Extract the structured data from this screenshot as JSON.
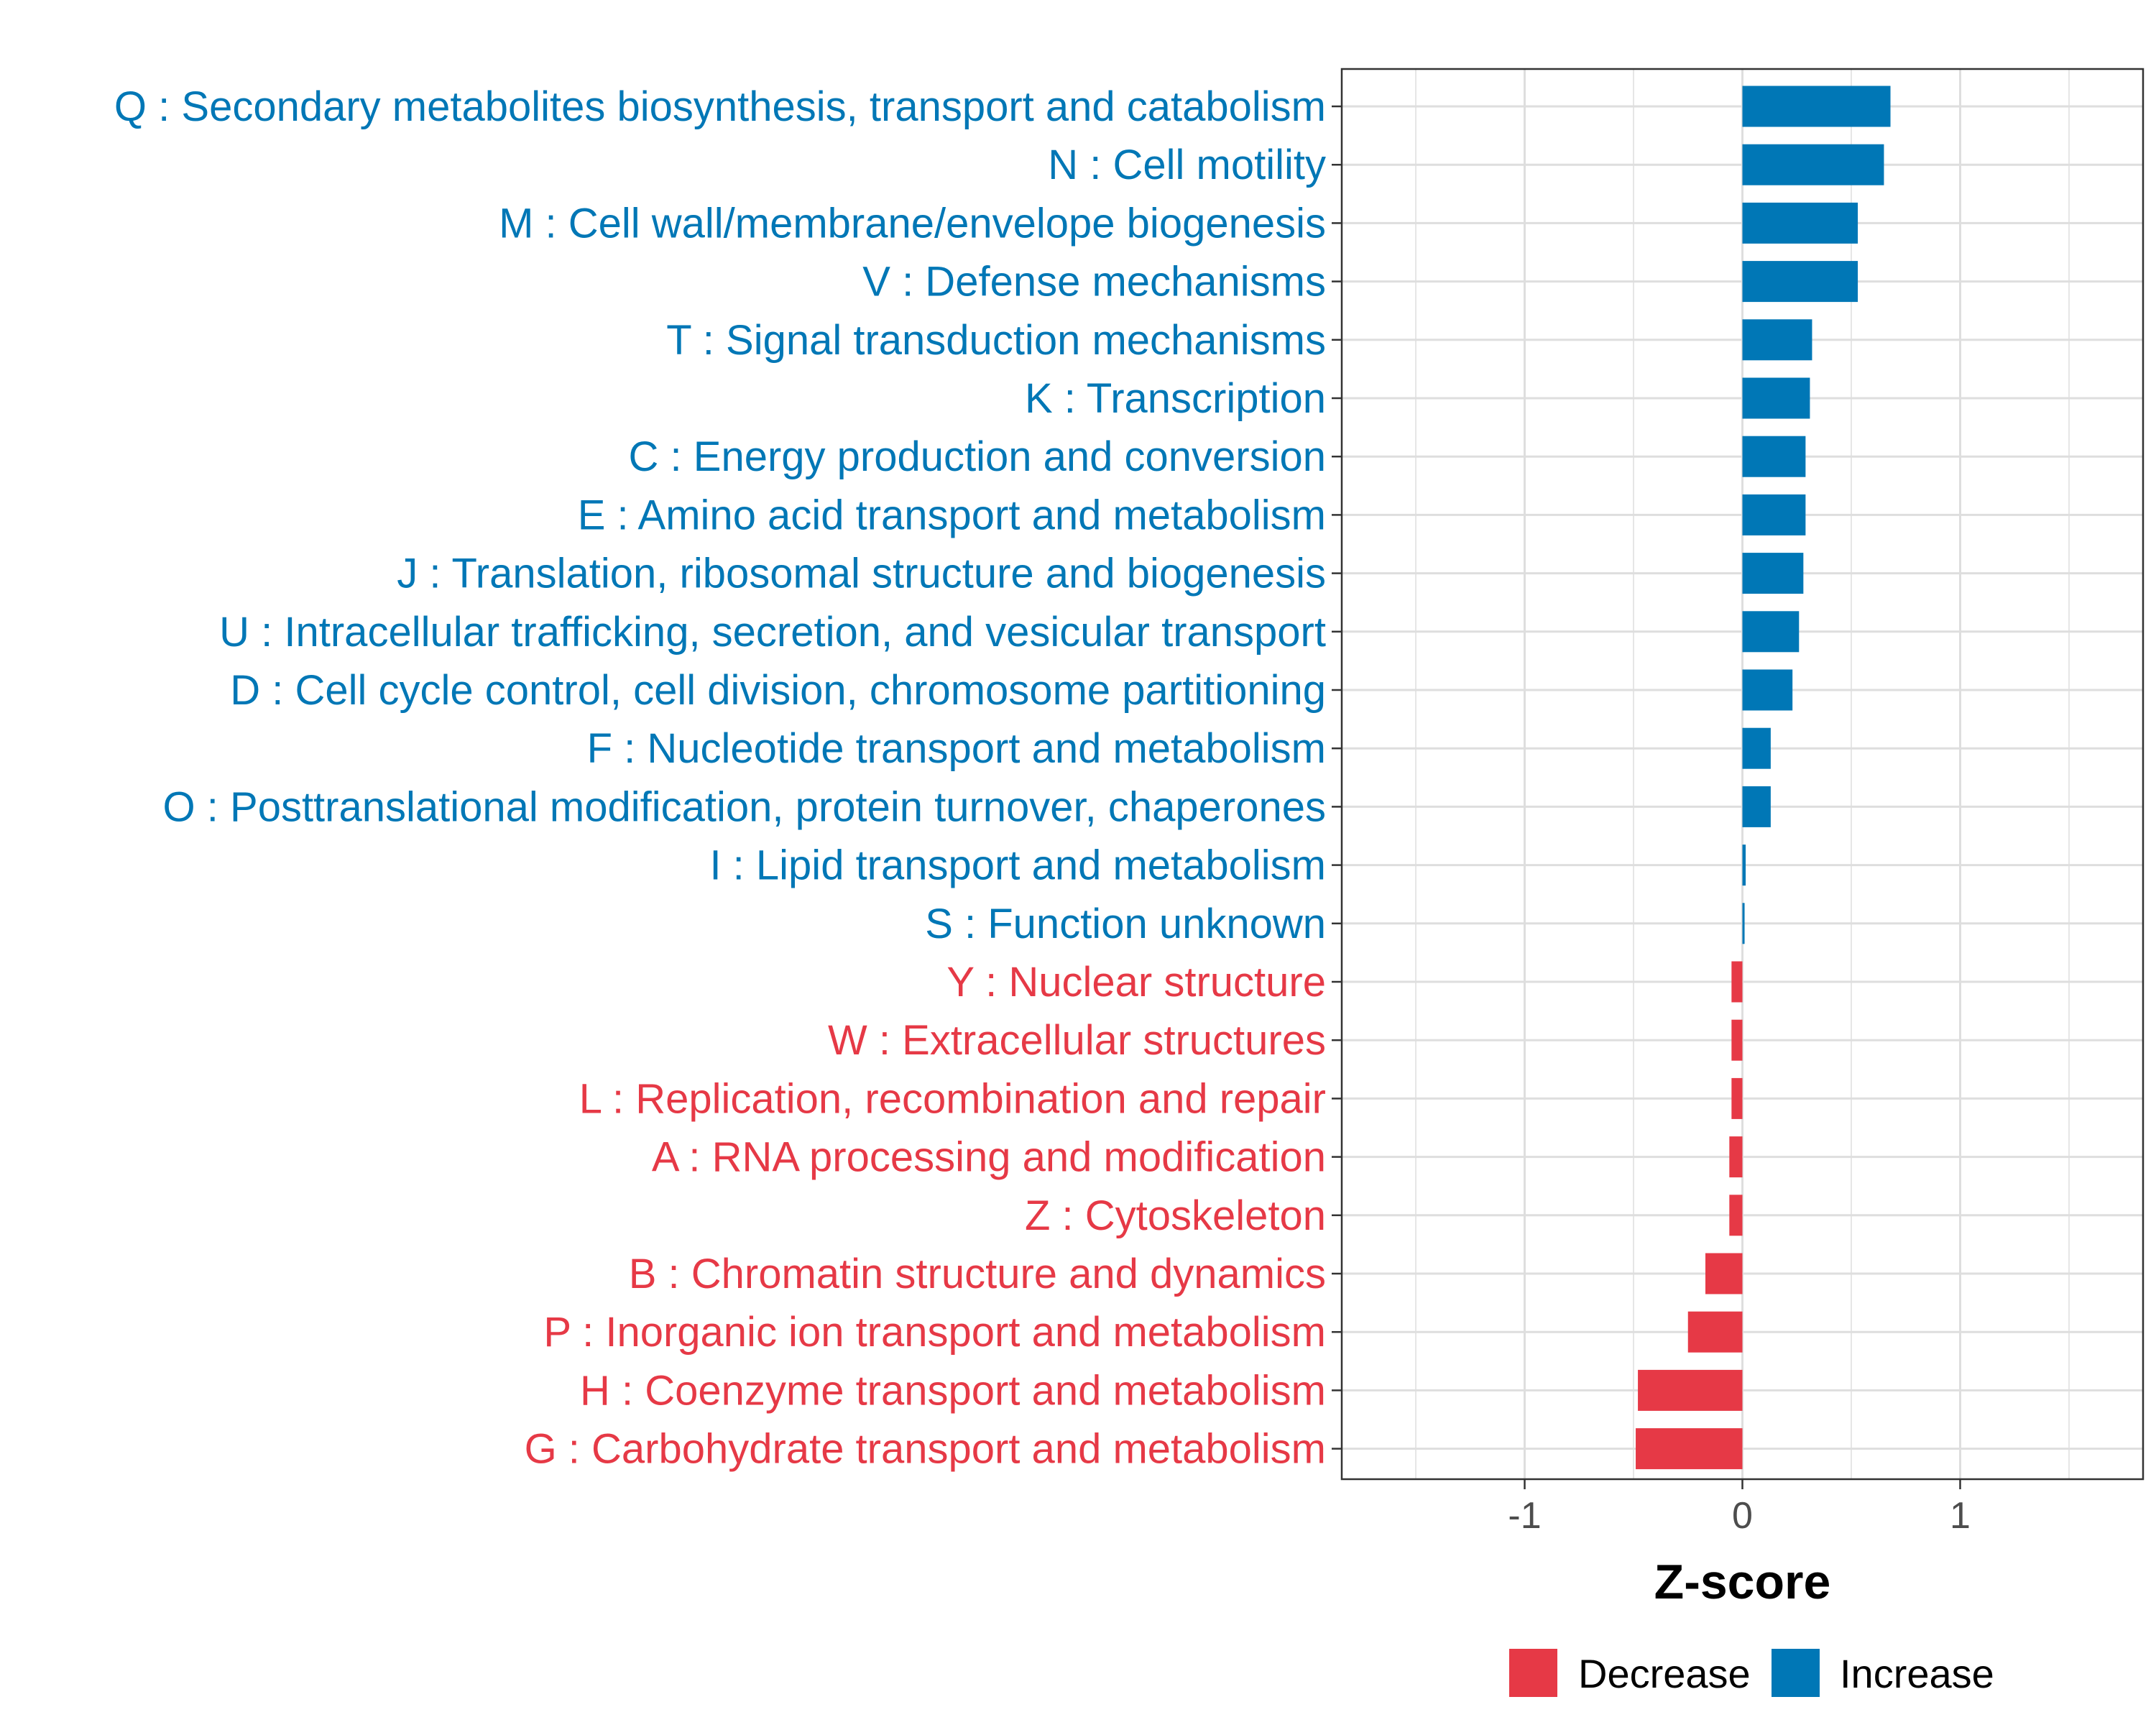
{
  "chart_data": {
    "type": "bar",
    "orientation": "horizontal",
    "title": "",
    "xlabel": "Z-score",
    "ylabel": "",
    "xlim": [
      -1.84,
      1.84
    ],
    "xticks": [
      -1,
      0,
      1
    ],
    "xtick_labels": [
      "-1",
      "0",
      "1"
    ],
    "grid": true,
    "legend_position": "bottom",
    "colors": {
      "Decrease": "#e63946",
      "Increase": "#0077b6"
    },
    "legend": [
      {
        "name": "Decrease",
        "color": "#e63946"
      },
      {
        "name": "Increase",
        "color": "#0077b6"
      }
    ],
    "categories": [
      {
        "label": "Q : Secondary metabolites biosynthesis, transport and catabolism",
        "value": 0.68,
        "direction": "Increase"
      },
      {
        "label": "N : Cell motility",
        "value": 0.65,
        "direction": "Increase"
      },
      {
        "label": "M : Cell wall/membrane/envelope biogenesis",
        "value": 0.53,
        "direction": "Increase"
      },
      {
        "label": "V : Defense mechanisms",
        "value": 0.53,
        "direction": "Increase"
      },
      {
        "label": "T : Signal transduction mechanisms",
        "value": 0.32,
        "direction": "Increase"
      },
      {
        "label": "K : Transcription",
        "value": 0.31,
        "direction": "Increase"
      },
      {
        "label": "C : Energy production and conversion",
        "value": 0.29,
        "direction": "Increase"
      },
      {
        "label": "E : Amino acid transport and metabolism",
        "value": 0.29,
        "direction": "Increase"
      },
      {
        "label": "J : Translation, ribosomal structure and biogenesis",
        "value": 0.28,
        "direction": "Increase"
      },
      {
        "label": "U : Intracellular trafficking, secretion, and vesicular transport",
        "value": 0.26,
        "direction": "Increase"
      },
      {
        "label": "D : Cell cycle control, cell division, chromosome partitioning",
        "value": 0.23,
        "direction": "Increase"
      },
      {
        "label": "F : Nucleotide transport and metabolism",
        "value": 0.13,
        "direction": "Increase"
      },
      {
        "label": "O : Posttranslational modification, protein turnover, chaperones",
        "value": 0.13,
        "direction": "Increase"
      },
      {
        "label": "I : Lipid transport and metabolism",
        "value": 0.015,
        "direction": "Increase"
      },
      {
        "label": "S : Function unknown",
        "value": 0.01,
        "direction": "Increase"
      },
      {
        "label": "Y : Nuclear structure",
        "value": -0.05,
        "direction": "Decrease"
      },
      {
        "label": "W : Extracellular structures",
        "value": -0.05,
        "direction": "Decrease"
      },
      {
        "label": "L : Replication, recombination and repair",
        "value": -0.05,
        "direction": "Decrease"
      },
      {
        "label": "A : RNA processing and modification",
        "value": -0.06,
        "direction": "Decrease"
      },
      {
        "label": "Z : Cytoskeleton",
        "value": -0.06,
        "direction": "Decrease"
      },
      {
        "label": "B : Chromatin structure and dynamics",
        "value": -0.17,
        "direction": "Decrease"
      },
      {
        "label": "P : Inorganic ion transport and metabolism",
        "value": -0.25,
        "direction": "Decrease"
      },
      {
        "label": "H : Coenzyme transport and metabolism",
        "value": -0.48,
        "direction": "Decrease"
      },
      {
        "label": "G : Carbohydrate transport and metabolism",
        "value": -0.49,
        "direction": "Decrease"
      }
    ]
  }
}
